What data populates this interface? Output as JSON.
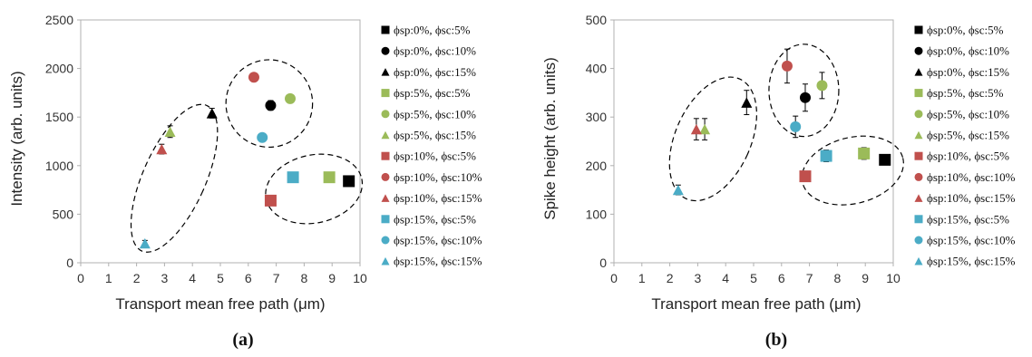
{
  "colors": {
    "g0": "#000000",
    "g5": "#9bbb59",
    "g10": "#c0504d",
    "g15": "#4bacc6"
  },
  "legend_labels": [
    "ϕsp:0%, ϕsc:5%",
    "ϕsp:0%, ϕsc:10%",
    "ϕsp:0%, ϕsc:15%",
    "ϕsp:5%, ϕsc:5%",
    "ϕsp:5%, ϕsc:10%",
    "ϕsp:5%, ϕsc:15%",
    "ϕsp:10%, ϕsc:5%",
    "ϕsp:10%, ϕsc:10%",
    "ϕsp:10%, ϕsc:15%",
    "ϕsp:15%, ϕsc:5%",
    "ϕsp:15%, ϕsc:10%",
    "ϕsp:15%, ϕsc:15%"
  ],
  "series_style": [
    {
      "marker": "square",
      "color_key": "g0"
    },
    {
      "marker": "circle",
      "color_key": "g0"
    },
    {
      "marker": "triangle",
      "color_key": "g0"
    },
    {
      "marker": "square",
      "color_key": "g5"
    },
    {
      "marker": "circle",
      "color_key": "g5"
    },
    {
      "marker": "triangle",
      "color_key": "g5"
    },
    {
      "marker": "square",
      "color_key": "g10"
    },
    {
      "marker": "circle",
      "color_key": "g10"
    },
    {
      "marker": "triangle",
      "color_key": "g10"
    },
    {
      "marker": "square",
      "color_key": "g15"
    },
    {
      "marker": "circle",
      "color_key": "g15"
    },
    {
      "marker": "triangle",
      "color_key": "g15"
    }
  ],
  "chart_data": [
    {
      "type": "scatter",
      "panel_label": "(a)",
      "xlabel": "Transport mean free path (μm)",
      "ylabel": "Intensity (arb. units)",
      "xlim": [
        0,
        10
      ],
      "ylim": [
        0,
        2500
      ],
      "xticks": [
        "0",
        "1",
        "2",
        "3",
        "4",
        "5",
        "6",
        "7",
        "8",
        "9",
        "10"
      ],
      "yticks": [
        "0",
        "500",
        "1000",
        "1500",
        "2000",
        "2500"
      ],
      "points": [
        {
          "x": 9.6,
          "y": 840,
          "err": 0
        },
        {
          "x": 6.8,
          "y": 1620,
          "err": 50
        },
        {
          "x": 4.7,
          "y": 1540,
          "err": 50
        },
        {
          "x": 8.9,
          "y": 880,
          "err": 0
        },
        {
          "x": 7.5,
          "y": 1690,
          "err": 0
        },
        {
          "x": 3.2,
          "y": 1350,
          "err": 60
        },
        {
          "x": 6.8,
          "y": 640,
          "err": 0
        },
        {
          "x": 6.2,
          "y": 1910,
          "err": 40
        },
        {
          "x": 2.9,
          "y": 1170,
          "err": 50
        },
        {
          "x": 7.6,
          "y": 880,
          "err": 0
        },
        {
          "x": 6.5,
          "y": 1290,
          "err": 0
        },
        {
          "x": 2.3,
          "y": 200,
          "err": 30
        }
      ],
      "ellipses": [
        {
          "cx": 3.35,
          "cy": 870,
          "rx": 1.12,
          "ry": 820,
          "rot": 24
        },
        {
          "cx": 6.75,
          "cy": 1640,
          "rx": 1.55,
          "ry": 450,
          "rot": 0
        },
        {
          "cx": 8.35,
          "cy": 760,
          "rx": 1.75,
          "ry": 350,
          "rot": -12
        }
      ]
    },
    {
      "type": "scatter",
      "panel_label": "(b)",
      "xlabel": "Transport mean free path (μm)",
      "ylabel": "Spike height (arb. units)",
      "xlim": [
        0,
        10
      ],
      "ylim": [
        0,
        500
      ],
      "xticks": [
        "0",
        "1",
        "2",
        "3",
        "4",
        "5",
        "6",
        "7",
        "8",
        "9",
        "10"
      ],
      "yticks": [
        "0",
        "100",
        "200",
        "300",
        "400",
        "500"
      ],
      "points": [
        {
          "x": 9.7,
          "y": 212,
          "err": 10
        },
        {
          "x": 6.85,
          "y": 340,
          "err": 28
        },
        {
          "x": 4.75,
          "y": 330,
          "err": 25
        },
        {
          "x": 8.95,
          "y": 225,
          "err": 12
        },
        {
          "x": 7.45,
          "y": 365,
          "err": 27
        },
        {
          "x": 3.25,
          "y": 275,
          "err": 22
        },
        {
          "x": 6.85,
          "y": 178,
          "err": 0
        },
        {
          "x": 6.2,
          "y": 405,
          "err": 35
        },
        {
          "x": 2.95,
          "y": 275,
          "err": 22
        },
        {
          "x": 7.6,
          "y": 220,
          "err": 12
        },
        {
          "x": 6.5,
          "y": 280,
          "err": 22
        },
        {
          "x": 2.3,
          "y": 150,
          "err": 10
        }
      ],
      "ellipses": [
        {
          "cx": 3.55,
          "cy": 255,
          "rx": 1.35,
          "ry": 135,
          "rot": 24
        },
        {
          "cx": 6.8,
          "cy": 355,
          "rx": 1.25,
          "ry": 95,
          "rot": 0
        },
        {
          "cx": 8.55,
          "cy": 190,
          "rx": 1.85,
          "ry": 68,
          "rot": -14
        }
      ]
    }
  ]
}
